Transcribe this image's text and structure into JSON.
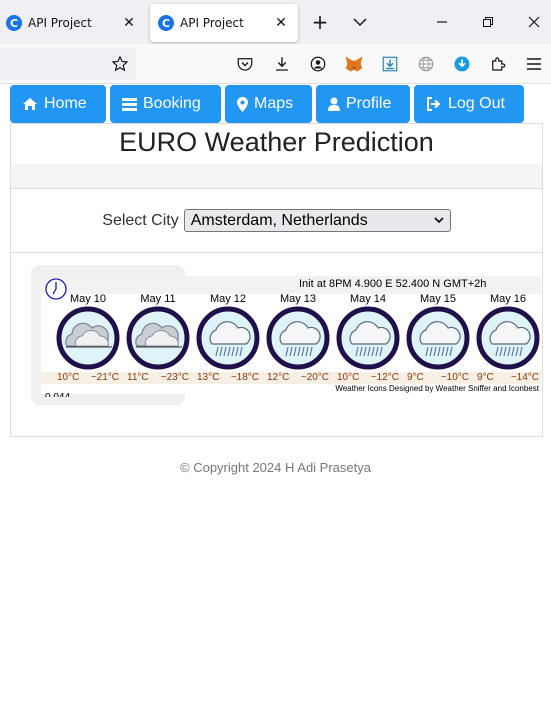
{
  "browser": {
    "tabs": [
      {
        "title": "API Project",
        "favicon": "C"
      },
      {
        "title": "API Project",
        "favicon": "C"
      }
    ]
  },
  "nav": {
    "items": [
      {
        "label": "Home",
        "icon": "home-icon"
      },
      {
        "label": "Booking",
        "icon": "list-icon"
      },
      {
        "label": "Maps",
        "icon": "map-marker-icon"
      },
      {
        "label": "Profile",
        "icon": "user-icon"
      },
      {
        "label": "Log Out",
        "icon": "sign-out-icon"
      }
    ],
    "button_color": "#2196f3"
  },
  "page": {
    "title": "EURO Weather Prediction",
    "select_label": "Select City",
    "selected_city": "Amsterdam, Netherlands"
  },
  "forecast": {
    "init_text": "Init at 8PM 4.900 E 52.400 N GMT+2h",
    "credit": "Weather Icons Designed by Weather Sniffer and Iconbest",
    "cut_text": "0.044",
    "days": [
      {
        "date": "May 10",
        "low": "10°C",
        "high": "~21°C",
        "icon": "partly-cloudy-icon"
      },
      {
        "date": "May 11",
        "low": "11°C",
        "high": "~23°C",
        "icon": "partly-cloudy-icon"
      },
      {
        "date": "May 12",
        "low": "13°C",
        "high": "~18°C",
        "icon": "rain-icon"
      },
      {
        "date": "May 13",
        "low": "12°C",
        "high": "~20°C",
        "icon": "rain-icon"
      },
      {
        "date": "May 14",
        "low": "10°C",
        "high": "~12°C",
        "icon": "rain-icon"
      },
      {
        "date": "May 15",
        "low": "9°C",
        "high": "~10°C",
        "icon": "rain-icon"
      },
      {
        "date": "May 16",
        "low": "9°C",
        "high": "~14°C",
        "icon": "rain-icon"
      }
    ]
  },
  "footer": {
    "text": "© Copyright 2024 H Adi Prasetya"
  }
}
